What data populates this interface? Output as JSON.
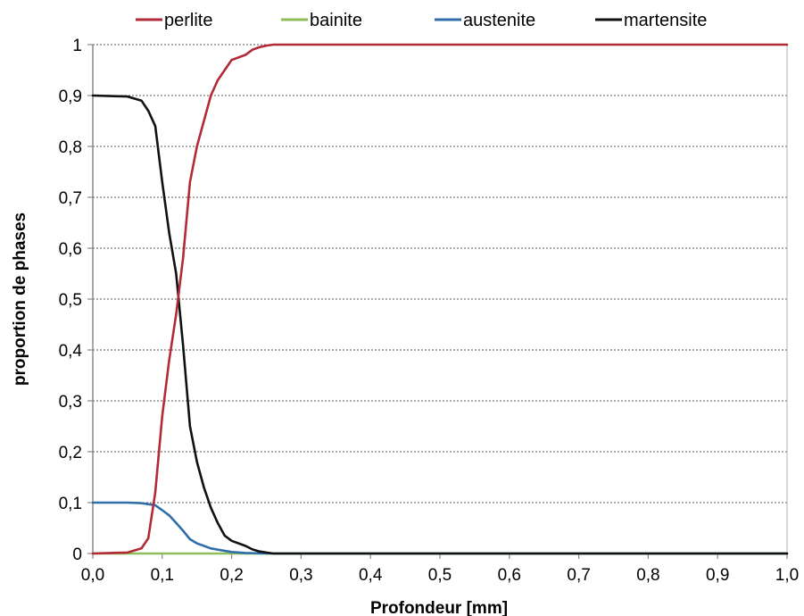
{
  "chart_data": {
    "type": "line",
    "title": "",
    "xlabel": "Profondeur [mm]",
    "ylabel": "proportion de phases",
    "xlim": [
      0,
      1
    ],
    "ylim": [
      0,
      1
    ],
    "x_ticks": [
      "0,0",
      "0,1",
      "0,2",
      "0,3",
      "0,4",
      "0,5",
      "0,6",
      "0,7",
      "0,8",
      "0,9",
      "1,0"
    ],
    "y_ticks": [
      "0",
      "0,1",
      "0,2",
      "0,3",
      "0,4",
      "0,5",
      "0,6",
      "0,7",
      "0,8",
      "0,9",
      "1"
    ],
    "grid": "horizontal dashed",
    "legend_position": "top",
    "series": [
      {
        "name": "perlite",
        "color": "#b22a37",
        "x": [
          0,
          0.05,
          0.07,
          0.08,
          0.09,
          0.1,
          0.11,
          0.12,
          0.13,
          0.14,
          0.15,
          0.16,
          0.17,
          0.18,
          0.19,
          0.2,
          0.21,
          0.22,
          0.23,
          0.24,
          0.25,
          0.26,
          0.3,
          1.0
        ],
        "values": [
          0,
          0.002,
          0.01,
          0.03,
          0.12,
          0.27,
          0.38,
          0.47,
          0.58,
          0.73,
          0.8,
          0.85,
          0.9,
          0.93,
          0.95,
          0.97,
          0.975,
          0.98,
          0.99,
          0.995,
          0.998,
          1.0,
          1.0,
          1.0
        ]
      },
      {
        "name": "bainite",
        "color": "#8fbd5a",
        "x": [
          0,
          0.1,
          0.2,
          0.3,
          1.0
        ],
        "values": [
          0,
          0,
          0,
          0,
          0
        ]
      },
      {
        "name": "austenite",
        "color": "#2f6ea8",
        "x": [
          0,
          0.05,
          0.07,
          0.09,
          0.1,
          0.11,
          0.12,
          0.13,
          0.14,
          0.15,
          0.17,
          0.2,
          0.22,
          0.25,
          0.3,
          1.0
        ],
        "values": [
          0.1,
          0.1,
          0.099,
          0.095,
          0.085,
          0.075,
          0.06,
          0.045,
          0.028,
          0.02,
          0.01,
          0.003,
          0.001,
          0,
          0,
          0
        ]
      },
      {
        "name": "martensite",
        "color": "#111111",
        "x": [
          0,
          0.05,
          0.07,
          0.08,
          0.09,
          0.1,
          0.11,
          0.12,
          0.13,
          0.14,
          0.15,
          0.16,
          0.17,
          0.18,
          0.19,
          0.2,
          0.22,
          0.23,
          0.24,
          0.25,
          0.26,
          0.3,
          1.0
        ],
        "values": [
          0.9,
          0.898,
          0.89,
          0.87,
          0.84,
          0.73,
          0.63,
          0.55,
          0.41,
          0.25,
          0.18,
          0.13,
          0.09,
          0.06,
          0.035,
          0.025,
          0.015,
          0.008,
          0.004,
          0.002,
          0,
          0,
          0
        ]
      }
    ]
  }
}
